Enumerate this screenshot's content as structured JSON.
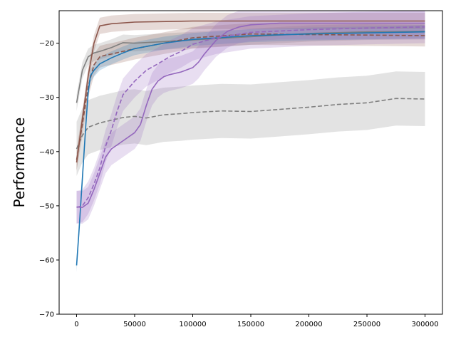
{
  "chart_data": {
    "type": "line",
    "title": "",
    "xlabel": "",
    "ylabel": "Performance",
    "xlim": [
      -15000,
      315000
    ],
    "ylim": [
      -70,
      -14
    ],
    "xticks": [
      0,
      50000,
      100000,
      150000,
      200000,
      250000,
      300000
    ],
    "yticks": [
      -70,
      -60,
      -50,
      -40,
      -30,
      -20
    ],
    "grid": false,
    "legend": "none",
    "series": [
      {
        "color": "#7f7f7f",
        "dash": "solid",
        "band": 1.5,
        "x": [
          0,
          5000,
          10000,
          15000,
          20000,
          30000,
          40000,
          50000,
          75000,
          100000,
          150000,
          200000,
          250000,
          300000
        ],
        "y": [
          -31,
          -25,
          -22.5,
          -21.8,
          -21.5,
          -20.8,
          -19.9,
          -20.0,
          -19.7,
          -19.4,
          -18.8,
          -18.2,
          -17.9,
          -17.8
        ]
      },
      {
        "color": "#7f7f7f",
        "dash": "dashed",
        "band": 5,
        "x": [
          0,
          5000,
          10000,
          20000,
          30000,
          40000,
          50000,
          60000,
          75000,
          90000,
          100000,
          125000,
          150000,
          175000,
          200000,
          225000,
          250000,
          275000,
          300000
        ],
        "y": [
          -39.5,
          -37,
          -35.5,
          -34.7,
          -34.2,
          -33.7,
          -33.5,
          -33.8,
          -33.2,
          -33.0,
          -32.8,
          -32.5,
          -32.6,
          -32.2,
          -31.8,
          -31.3,
          -31.0,
          -30.2,
          -30.3
        ]
      },
      {
        "color": "#8c564b",
        "dash": "solid",
        "band": 1.5,
        "x": [
          0,
          5000,
          10000,
          15000,
          20000,
          30000,
          50000,
          100000,
          150000,
          200000,
          250000,
          300000
        ],
        "y": [
          -42,
          -34,
          -26,
          -20,
          -16.8,
          -16.4,
          -16.1,
          -15.9,
          -15.9,
          -15.9,
          -15.9,
          -15.9
        ]
      },
      {
        "color": "#8c564b",
        "dash": "dashed",
        "band": 2,
        "x": [
          0,
          5000,
          10000,
          15000,
          20000,
          25000,
          30000,
          50000,
          75000,
          100000,
          150000,
          200000,
          250000,
          300000
        ],
        "y": [
          -41.5,
          -35,
          -28,
          -24,
          -22.5,
          -22.2,
          -22.0,
          -21.0,
          -20.0,
          -19.0,
          -18.3,
          -18.4,
          -18.5,
          -18.6
        ]
      },
      {
        "color": "#1f77b4",
        "dash": "solid",
        "band": 1.2,
        "x": [
          0,
          2000,
          5000,
          8000,
          10000,
          12000,
          15000,
          20000,
          30000,
          40000,
          50000,
          75000,
          100000,
          150000,
          200000,
          250000,
          300000
        ],
        "y": [
          -61,
          -55,
          -45,
          -35,
          -29,
          -26,
          -25,
          -23.8,
          -22.7,
          -21.8,
          -21.0,
          -20.0,
          -19.3,
          -18.6,
          -18.3,
          -18.1,
          -17.9
        ]
      },
      {
        "color": "#9467bd",
        "dash": "solid",
        "band": 3,
        "x": [
          0,
          5000,
          10000,
          15000,
          20000,
          25000,
          30000,
          40000,
          50000,
          55000,
          60000,
          65000,
          70000,
          75000,
          80000,
          90000,
          100000,
          105000,
          110000,
          120000,
          130000,
          140000,
          150000,
          175000,
          200000,
          250000,
          300000
        ],
        "y": [
          -50.2,
          -50.3,
          -49.5,
          -47,
          -44,
          -41,
          -39.5,
          -38.0,
          -36.5,
          -35.0,
          -31.5,
          -28.5,
          -27.0,
          -26.2,
          -25.8,
          -25.3,
          -24.5,
          -23.5,
          -22.0,
          -19.5,
          -17.8,
          -17.0,
          -16.6,
          -16.3,
          -16.3,
          -16.3,
          -16.3
        ]
      },
      {
        "color": "#9467bd",
        "dash": "dashed",
        "band": 3,
        "x": [
          0,
          5000,
          10000,
          15000,
          20000,
          25000,
          30000,
          35000,
          40000,
          50000,
          60000,
          70000,
          80000,
          90000,
          100000,
          120000,
          150000,
          200000,
          250000,
          300000
        ],
        "y": [
          -50.3,
          -50,
          -48.5,
          -46,
          -43,
          -39,
          -36,
          -32.5,
          -29.5,
          -27,
          -25,
          -23.8,
          -22.5,
          -21.5,
          -20.2,
          -19.0,
          -18.0,
          -17.5,
          -17.2,
          -17.0
        ]
      }
    ]
  }
}
